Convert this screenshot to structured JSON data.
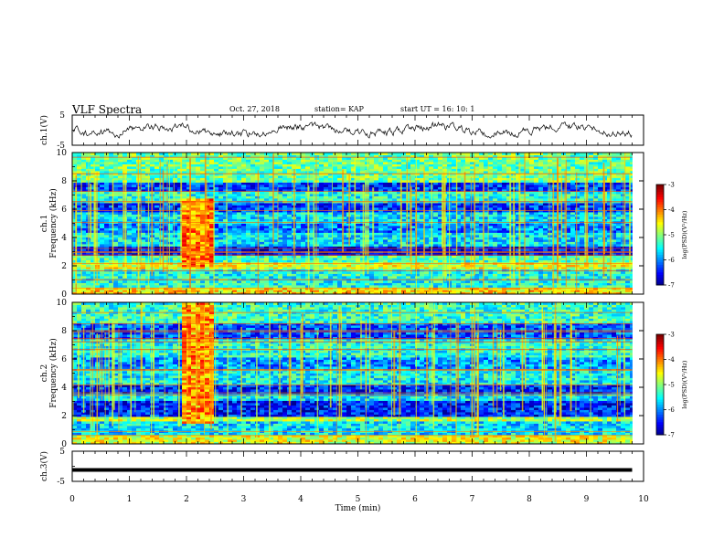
{
  "header": {
    "title": "VLF Spectra",
    "date": "Oct. 27, 2018",
    "station": "station= KAP",
    "start": "start  UT  =   16: 10: 1"
  },
  "chart_data": [
    {
      "type": "line",
      "panel": "ch1-waveform",
      "ylabel": "ch.1(V)",
      "ylim": [
        -5,
        5
      ],
      "yticks": [
        "5",
        "-5"
      ],
      "xlim": [
        0,
        10
      ],
      "note_series": "noisy voltage waveform roughly between -2 and 2 V over 0-9.8 min"
    },
    {
      "type": "heatmap",
      "panel": "ch1-spectrogram",
      "ylabel": "ch.1\nFrequency (kHz)",
      "ylim": [
        0,
        10
      ],
      "yticks": [
        "0",
        "2",
        "4",
        "6",
        "8",
        "10"
      ],
      "xlim": [
        0,
        10
      ],
      "data_end_min": 9.8,
      "colorbar": {
        "label": "log(PSD)(V²/Hz)",
        "range": [
          -7,
          -3
        ],
        "ticks": [
          "-3",
          "-4",
          "-5",
          "-6",
          "-7"
        ]
      },
      "bands_khz": [
        {
          "from": 0.0,
          "to": 0.5,
          "level": -4.4
        },
        {
          "from": 0.5,
          "to": 1.8,
          "level": -5.4
        },
        {
          "from": 1.8,
          "to": 2.3,
          "level": -4.6
        },
        {
          "from": 2.3,
          "to": 2.8,
          "level": -5.2
        },
        {
          "from": 2.8,
          "to": 3.4,
          "level": -6.5
        },
        {
          "from": 3.4,
          "to": 4.3,
          "level": -5.6
        },
        {
          "from": 4.3,
          "to": 5.0,
          "level": -6.0
        },
        {
          "from": 5.0,
          "to": 5.8,
          "level": -5.6
        },
        {
          "from": 5.8,
          "to": 6.5,
          "level": -6.3
        },
        {
          "from": 6.5,
          "to": 7.2,
          "level": -5.4
        },
        {
          "from": 7.2,
          "to": 7.9,
          "level": -6.3
        },
        {
          "from": 7.9,
          "to": 10.0,
          "level": -5.1
        }
      ],
      "burst": {
        "t_from": 1.9,
        "t_to": 2.42,
        "f_from": 2.0,
        "f_to": 6.8,
        "level": -4.0
      }
    },
    {
      "type": "heatmap",
      "panel": "ch2-spectrogram",
      "ylabel": "ch.2\nFrequency (kHz)",
      "ylim": [
        0,
        10
      ],
      "yticks": [
        "0",
        "2",
        "4",
        "6",
        "8",
        "10"
      ],
      "xlim": [
        0,
        10
      ],
      "data_end_min": 9.8,
      "colorbar": {
        "label": "log(PSD)(V²/Hz)",
        "range": [
          -7,
          -3
        ],
        "ticks": [
          "-3",
          "-4",
          "-5",
          "-6",
          "-7"
        ]
      },
      "bands_khz": [
        {
          "from": 0.0,
          "to": 0.6,
          "level": -4.6
        },
        {
          "from": 0.6,
          "to": 1.6,
          "level": -5.6
        },
        {
          "from": 1.6,
          "to": 2.0,
          "level": -4.8
        },
        {
          "from": 2.0,
          "to": 3.0,
          "level": -6.4
        },
        {
          "from": 3.0,
          "to": 3.5,
          "level": -5.6
        },
        {
          "from": 3.5,
          "to": 4.2,
          "level": -6.4
        },
        {
          "from": 4.2,
          "to": 5.4,
          "level": -5.5
        },
        {
          "from": 5.4,
          "to": 6.2,
          "level": -5.9
        },
        {
          "from": 6.2,
          "to": 7.4,
          "level": -5.4
        },
        {
          "from": 7.4,
          "to": 8.6,
          "level": -6.2
        },
        {
          "from": 8.6,
          "to": 10.0,
          "level": -5.3
        }
      ],
      "burst": {
        "t_from": 1.9,
        "t_to": 2.42,
        "f_from": 1.5,
        "f_to": 10.0,
        "level": -4.1
      }
    },
    {
      "type": "line",
      "panel": "ch3-waveform",
      "ylabel": "ch.3(V)",
      "ylim": [
        -5,
        5
      ],
      "yticks": [
        "5",
        "-5"
      ],
      "xlim": [
        0,
        10
      ],
      "value_v": -1.2,
      "xlabel": "Time  (min)",
      "xticks": [
        "0",
        "1",
        "2",
        "3",
        "4",
        "5",
        "6",
        "7",
        "8",
        "9",
        "10"
      ]
    }
  ]
}
